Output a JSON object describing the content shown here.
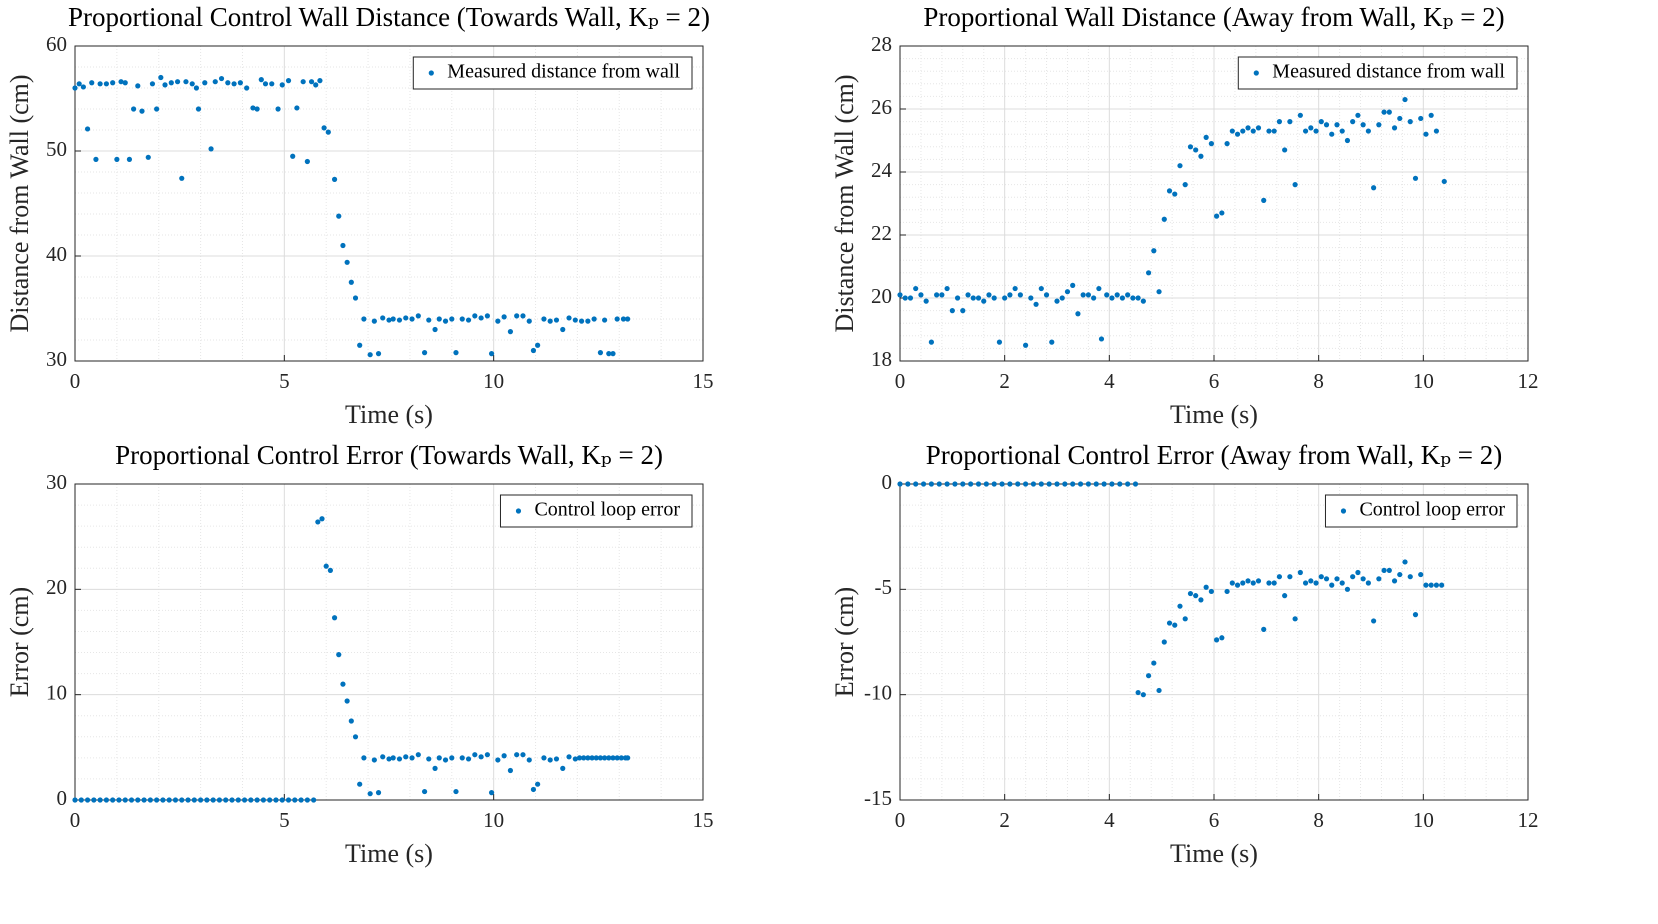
{
  "chart_data": [
    {
      "type": "scatter",
      "title": "Proportional Control Wall Distance (Towards Wall, Kₚ = 2)",
      "xlabel": "Time (s)",
      "ylabel": "Distance from Wall (cm)",
      "x": [
        0,
        0.1,
        0.2,
        0.3,
        0.4,
        0.5,
        0.6,
        0.75,
        0.9,
        1.0,
        1.1,
        1.2,
        1.3,
        1.4,
        1.5,
        1.6,
        1.75,
        1.85,
        1.95,
        2.05,
        2.15,
        2.3,
        2.45,
        2.55,
        2.65,
        2.8,
        2.9,
        2.95,
        3.1,
        3.25,
        3.35,
        3.5,
        3.65,
        3.8,
        3.95,
        4.1,
        4.25,
        4.35,
        4.45,
        4.55,
        4.7,
        4.85,
        4.95,
        5.1,
        5.2,
        5.3,
        5.45,
        5.55,
        5.65,
        5.75,
        5.85,
        5.95,
        6.05,
        6.2,
        6.3,
        6.4,
        6.5,
        6.6,
        6.7,
        6.8,
        6.9,
        7.05,
        7.15,
        7.25,
        7.35,
        7.5,
        7.6,
        7.75,
        7.9,
        8.05,
        8.2,
        8.35,
        8.45,
        8.6,
        8.7,
        8.85,
        9.0,
        9.1,
        9.25,
        9.4,
        9.55,
        9.7,
        9.85,
        9.95,
        10.1,
        10.25,
        10.4,
        10.55,
        10.7,
        10.85,
        10.95,
        11.05,
        11.2,
        11.35,
        11.5,
        11.65,
        11.8,
        11.95,
        12.1,
        12.25,
        12.4,
        12.55,
        12.65,
        12.75,
        12.85,
        12.95,
        13.1,
        13.2
      ],
      "series": [
        {
          "name": "Measured distance from wall",
          "color": "#0072bd",
          "values": [
            56,
            56.4,
            56.1,
            52.1,
            56.5,
            49.2,
            56.4,
            56.4,
            56.5,
            49.2,
            56.6,
            56.5,
            49.2,
            54.0,
            56.2,
            53.8,
            49.4,
            56.4,
            54.0,
            57.0,
            56.3,
            56.5,
            56.6,
            47.4,
            56.6,
            56.4,
            56.0,
            54.0,
            56.5,
            50.2,
            56.6,
            56.9,
            56.5,
            56.4,
            56.5,
            56.0,
            54.1,
            54.0,
            56.8,
            56.4,
            56.4,
            54.0,
            56.3,
            56.7,
            49.5,
            54.1,
            56.6,
            49.0,
            56.6,
            56.3,
            56.7,
            52.2,
            51.8,
            47.3,
            43.8,
            41.0,
            39.4,
            37.5,
            36.0,
            31.5,
            34.0,
            30.6,
            33.8,
            30.7,
            34.1,
            33.9,
            34.0,
            33.9,
            34.1,
            34.0,
            34.3,
            30.8,
            33.9,
            33.0,
            34.0,
            33.8,
            34.0,
            30.8,
            34.0,
            33.9,
            34.3,
            34.1,
            34.3,
            30.7,
            33.8,
            34.2,
            32.8,
            34.3,
            34.3,
            33.8,
            31.0,
            31.5,
            34.0,
            33.8,
            33.9,
            33.0,
            34.1,
            33.9,
            33.8,
            33.8,
            34.0,
            30.8,
            33.9,
            30.7,
            30.7,
            34.0,
            34.0,
            34.0
          ]
        }
      ],
      "xlim": [
        0,
        15
      ],
      "ylim": [
        30,
        60
      ],
      "xticks": [
        0,
        5,
        10,
        15
      ],
      "yticks": [
        30,
        40,
        50,
        60
      ],
      "grid": true,
      "minor_grid": true,
      "legend": "upper right"
    },
    {
      "type": "scatter",
      "title": "Proportional Wall Distance (Away from Wall, Kₚ = 2)",
      "xlabel": "Time (s)",
      "ylabel": "Distance from Wall (cm)",
      "x": [
        0,
        0.1,
        0.2,
        0.3,
        0.4,
        0.5,
        0.6,
        0.7,
        0.8,
        0.9,
        1.0,
        1.1,
        1.2,
        1.3,
        1.4,
        1.5,
        1.6,
        1.7,
        1.8,
        1.9,
        2.0,
        2.1,
        2.2,
        2.3,
        2.4,
        2.5,
        2.6,
        2.7,
        2.8,
        2.9,
        3.0,
        3.1,
        3.2,
        3.3,
        3.4,
        3.5,
        3.6,
        3.7,
        3.8,
        3.85,
        3.95,
        4.05,
        4.15,
        4.25,
        4.35,
        4.45,
        4.55,
        4.65,
        4.75,
        4.85,
        4.95,
        5.05,
        5.15,
        5.25,
        5.35,
        5.45,
        5.55,
        5.65,
        5.75,
        5.85,
        5.95,
        6.05,
        6.15,
        6.25,
        6.35,
        6.45,
        6.55,
        6.65,
        6.75,
        6.85,
        6.95,
        7.05,
        7.15,
        7.25,
        7.35,
        7.45,
        7.55,
        7.65,
        7.75,
        7.85,
        7.95,
        8.05,
        8.15,
        8.25,
        8.35,
        8.45,
        8.55,
        8.65,
        8.75,
        8.85,
        8.95,
        9.05,
        9.15,
        9.25,
        9.35,
        9.45,
        9.55,
        9.65,
        9.75,
        9.85,
        9.95,
        10.05,
        10.15,
        10.25,
        10.4
      ],
      "series": [
        {
          "name": "Measured distance from wall",
          "color": "#0072bd",
          "values": [
            20.1,
            20.0,
            20.0,
            20.3,
            20.1,
            19.9,
            18.6,
            20.1,
            20.1,
            20.3,
            19.6,
            20.0,
            19.6,
            20.1,
            20.0,
            20.0,
            19.9,
            20.1,
            20.0,
            18.6,
            20.0,
            20.1,
            20.3,
            20.1,
            18.5,
            20.0,
            19.8,
            20.3,
            20.1,
            18.6,
            19.9,
            20.0,
            20.2,
            20.4,
            19.5,
            20.1,
            20.1,
            20.0,
            20.3,
            18.7,
            20.1,
            20.0,
            20.1,
            20.0,
            20.1,
            20.0,
            20.0,
            19.9,
            20.8,
            21.5,
            20.2,
            22.5,
            23.4,
            23.3,
            24.2,
            23.6,
            24.8,
            24.7,
            24.5,
            25.1,
            24.9,
            22.6,
            22.7,
            24.9,
            25.3,
            25.2,
            25.3,
            25.4,
            25.3,
            25.4,
            23.1,
            25.3,
            25.3,
            25.6,
            24.7,
            25.6,
            23.6,
            25.8,
            25.3,
            25.4,
            25.3,
            25.6,
            25.5,
            25.2,
            25.5,
            25.3,
            25.0,
            25.6,
            25.8,
            25.5,
            25.3,
            23.5,
            25.5,
            25.9,
            25.9,
            25.4,
            25.7,
            26.3,
            25.6,
            23.8,
            25.7,
            25.2,
            25.8,
            25.3,
            23.7
          ]
        }
      ],
      "xlim": [
        0,
        12
      ],
      "ylim": [
        18,
        28
      ],
      "xticks": [
        0,
        2,
        4,
        6,
        8,
        10,
        12
      ],
      "yticks": [
        18,
        20,
        22,
        24,
        26,
        28
      ],
      "grid": true,
      "minor_grid": true,
      "legend": "upper right"
    },
    {
      "type": "scatter",
      "title": "Proportional Control Error (Towards Wall, Kₚ = 2)",
      "xlabel": "Time (s)",
      "ylabel": "Error (cm)",
      "x": [
        0,
        0.15,
        0.3,
        0.45,
        0.6,
        0.75,
        0.9,
        1.05,
        1.2,
        1.35,
        1.5,
        1.65,
        1.8,
        1.95,
        2.1,
        2.25,
        2.4,
        2.55,
        2.7,
        2.85,
        3,
        3.15,
        3.3,
        3.45,
        3.6,
        3.75,
        3.9,
        4.05,
        4.2,
        4.35,
        4.5,
        4.65,
        4.8,
        4.95,
        5.1,
        5.25,
        5.4,
        5.55,
        5.7,
        5.8,
        5.9,
        6.0,
        6.1,
        6.2,
        6.3,
        6.4,
        6.5,
        6.6,
        6.7,
        6.8,
        6.9,
        7.05,
        7.15,
        7.25,
        7.35,
        7.5,
        7.6,
        7.75,
        7.9,
        8.05,
        8.2,
        8.35,
        8.45,
        8.6,
        8.7,
        8.85,
        9.0,
        9.1,
        9.25,
        9.4,
        9.55,
        9.7,
        9.85,
        9.95,
        10.1,
        10.25,
        10.4,
        10.55,
        10.7,
        10.85,
        10.95,
        11.05,
        11.2,
        11.35,
        11.5,
        11.65,
        11.8,
        11.95,
        12.05,
        12.15,
        12.25,
        12.35,
        12.45,
        12.55,
        12.65,
        12.75,
        12.85,
        12.95,
        13.05,
        13.15,
        13.2
      ],
      "series": [
        {
          "name": "Control loop error",
          "color": "#0072bd",
          "values": [
            0,
            0,
            0,
            0,
            0,
            0,
            0,
            0,
            0,
            0,
            0,
            0,
            0,
            0,
            0,
            0,
            0,
            0,
            0,
            0,
            0,
            0,
            0,
            0,
            0,
            0,
            0,
            0,
            0,
            0,
            0,
            0,
            0,
            0,
            0,
            0,
            0,
            0,
            0,
            26.4,
            26.7,
            22.2,
            21.8,
            17.3,
            13.8,
            11.0,
            9.4,
            7.5,
            6.0,
            1.5,
            4.0,
            0.6,
            3.8,
            0.7,
            4.1,
            3.9,
            4.0,
            3.9,
            4.1,
            4.0,
            4.3,
            0.8,
            3.9,
            3.0,
            4.0,
            3.8,
            4.0,
            0.8,
            4.0,
            3.9,
            4.3,
            4.1,
            4.3,
            0.7,
            3.8,
            4.2,
            2.8,
            4.3,
            4.3,
            3.8,
            1.0,
            1.5,
            4.0,
            3.8,
            3.9,
            3.0,
            4.1,
            3.9,
            4.0,
            4.0,
            4.0,
            4.0,
            4.0,
            4.0,
            4.0,
            4.0,
            4.0,
            4.0,
            4.0,
            4.0,
            4.0
          ]
        }
      ],
      "xlim": [
        0,
        15
      ],
      "ylim": [
        0,
        30
      ],
      "xticks": [
        0,
        5,
        10,
        15
      ],
      "yticks": [
        0,
        10,
        20,
        30
      ],
      "grid": true,
      "minor_grid": true,
      "legend": "upper right"
    },
    {
      "type": "scatter",
      "title": "Proportional Control Error (Away from Wall, Kₚ = 2)",
      "xlabel": "Time (s)",
      "ylabel": "Error (cm)",
      "x": [
        0,
        0.15,
        0.3,
        0.45,
        0.6,
        0.75,
        0.9,
        1.05,
        1.2,
        1.35,
        1.5,
        1.65,
        1.8,
        1.95,
        2.1,
        2.25,
        2.4,
        2.55,
        2.7,
        2.85,
        3,
        3.15,
        3.3,
        3.45,
        3.6,
        3.75,
        3.9,
        4.05,
        4.2,
        4.35,
        4.5,
        4.55,
        4.65,
        4.75,
        4.85,
        4.95,
        5.05,
        5.15,
        5.25,
        5.35,
        5.45,
        5.55,
        5.65,
        5.75,
        5.85,
        5.95,
        6.05,
        6.15,
        6.25,
        6.35,
        6.45,
        6.55,
        6.65,
        6.75,
        6.85,
        6.95,
        7.05,
        7.15,
        7.25,
        7.35,
        7.45,
        7.55,
        7.65,
        7.75,
        7.85,
        7.95,
        8.05,
        8.15,
        8.25,
        8.35,
        8.45,
        8.55,
        8.65,
        8.75,
        8.85,
        8.95,
        9.05,
        9.15,
        9.25,
        9.35,
        9.45,
        9.55,
        9.65,
        9.75,
        9.85,
        9.95,
        10.05,
        10.15,
        10.25,
        10.35
      ],
      "series": [
        {
          "name": "Control loop error",
          "color": "#0072bd",
          "values": [
            0,
            0,
            0,
            0,
            0,
            0,
            0,
            0,
            0,
            0,
            0,
            0,
            0,
            0,
            0,
            0,
            0,
            0,
            0,
            0,
            0,
            0,
            0,
            0,
            0,
            0,
            0,
            0,
            0,
            0,
            0,
            -9.9,
            -10.0,
            -9.1,
            -8.5,
            -9.8,
            -7.5,
            -6.6,
            -6.7,
            -5.8,
            -6.4,
            -5.2,
            -5.3,
            -5.5,
            -4.9,
            -5.1,
            -7.4,
            -7.3,
            -5.1,
            -4.7,
            -4.8,
            -4.7,
            -4.6,
            -4.7,
            -4.6,
            -6.9,
            -4.7,
            -4.7,
            -4.4,
            -5.3,
            -4.4,
            -6.4,
            -4.2,
            -4.7,
            -4.6,
            -4.7,
            -4.4,
            -4.5,
            -4.8,
            -4.5,
            -4.7,
            -5.0,
            -4.4,
            -4.2,
            -4.5,
            -4.7,
            -6.5,
            -4.5,
            -4.1,
            -4.1,
            -4.6,
            -4.3,
            -3.7,
            -4.4,
            -6.2,
            -4.3,
            -4.8,
            -4.8,
            -4.8,
            -4.8
          ]
        }
      ],
      "xlim": [
        0,
        12
      ],
      "ylim": [
        -15,
        0
      ],
      "xticks": [
        0,
        2,
        4,
        6,
        8,
        10,
        12
      ],
      "yticks": [
        -15,
        -10,
        -5,
        0
      ],
      "grid": true,
      "minor_grid": true,
      "legend": "upper right"
    }
  ]
}
